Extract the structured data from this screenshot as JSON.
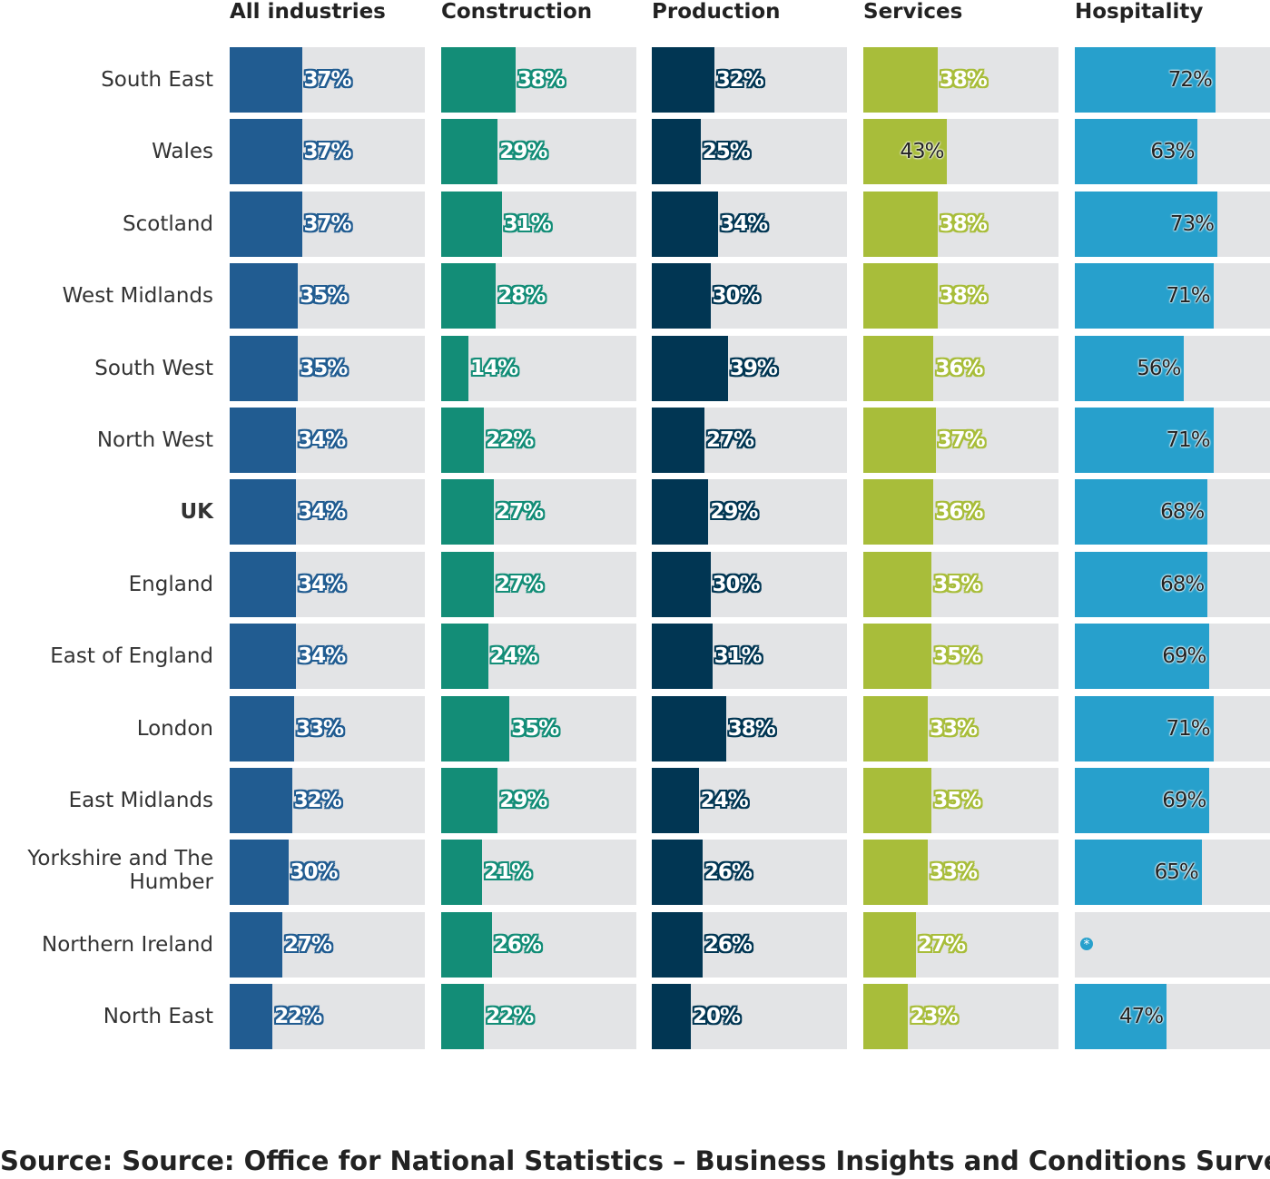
{
  "chart_data": {
    "type": "bar",
    "orientation": "horizontal",
    "layout": "small-multiples",
    "value_suffix": "%",
    "xlim": [
      0,
      100
    ],
    "categories": [
      "South East",
      "Wales",
      "Scotland",
      "West Midlands",
      "South West",
      "North West",
      "UK",
      "England",
      "East of England",
      "London",
      "East Midlands",
      "Yorkshire and The Humber",
      "Northern Ireland",
      "North East"
    ],
    "highlight_category": "UK",
    "series": [
      {
        "name": "All industries",
        "color": "#215c91",
        "values": [
          37,
          37,
          37,
          35,
          35,
          34,
          34,
          34,
          34,
          33,
          32,
          30,
          27,
          22
        ]
      },
      {
        "name": "Construction",
        "color": "#138d77",
        "values": [
          38,
          29,
          31,
          28,
          14,
          22,
          27,
          27,
          24,
          35,
          29,
          21,
          26,
          22
        ]
      },
      {
        "name": "Production",
        "color": "#013653",
        "values": [
          32,
          25,
          34,
          30,
          39,
          27,
          29,
          30,
          31,
          38,
          24,
          26,
          26,
          20
        ]
      },
      {
        "name": "Services",
        "color": "#a8bd3a",
        "values": [
          38,
          43,
          38,
          38,
          36,
          37,
          36,
          35,
          35,
          33,
          35,
          33,
          27,
          23
        ]
      },
      {
        "name": "Hospitality",
        "color": "#27a0cc",
        "values": [
          72,
          63,
          73,
          71,
          56,
          71,
          68,
          68,
          69,
          71,
          69,
          65,
          null,
          47
        ]
      }
    ],
    "suppressed_marker": "*",
    "background_color": "#e3e4e6"
  },
  "source": "Source: Source: Office for National Statistics – Business Insights and Conditions Survey"
}
